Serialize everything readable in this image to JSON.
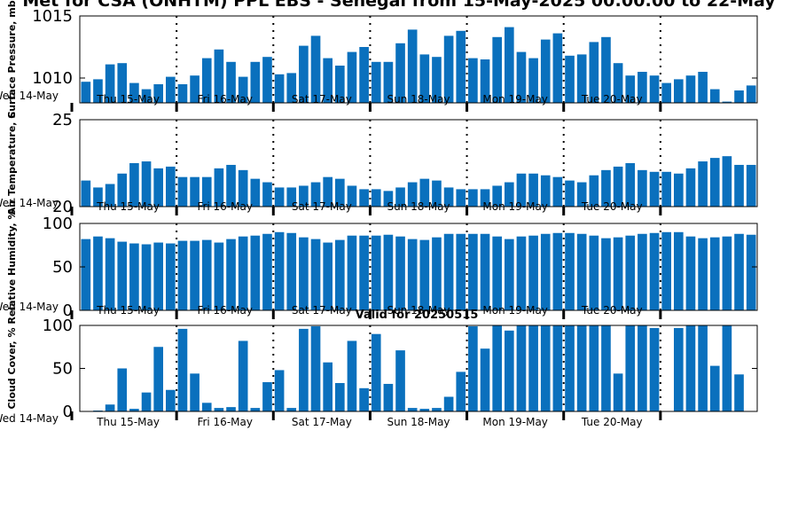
{
  "title": "Met for CSA (ONHTM) PPL EBS  - Senegal from 15-May-2025 00:00:00 to 22-May",
  "subtitle": "Valid for 20250515",
  "colors": {
    "bar": "#0a70bd",
    "axis": "#000000",
    "day_line": "#000000"
  },
  "x_axis": {
    "first_tick_label": "Wed 14-May",
    "day_labels": [
      "Thu 15-May",
      "Fri 16-May",
      "Sat 17-May",
      "Sun 18-May",
      "Mon 19-May",
      "Tue 20-May"
    ],
    "bars_per_day": 8
  },
  "chart_data": [
    {
      "type": "bar",
      "ylabel": "Surface Pressure, mb",
      "ylim": [
        1008,
        1015
      ],
      "yticks": [
        1010,
        1015
      ],
      "values": [
        1009.7,
        1009.9,
        1011.1,
        1011.2,
        1009.6,
        1009.1,
        1009.5,
        1010.1,
        1009.5,
        1010.2,
        1011.6,
        1012.3,
        1011.3,
        1010.1,
        1011.3,
        1011.7,
        1010.3,
        1010.4,
        1012.6,
        1013.4,
        1011.6,
        1011.0,
        1012.1,
        1012.5,
        1011.3,
        1011.3,
        1012.8,
        1013.9,
        1011.9,
        1011.7,
        1013.4,
        1013.8,
        1011.6,
        1011.5,
        1013.3,
        1014.1,
        1012.1,
        1011.6,
        1013.1,
        1013.6,
        1011.8,
        1011.9,
        1012.9,
        1013.3,
        1011.2,
        1010.2,
        1010.5,
        1010.2,
        1009.6,
        1009.9,
        1010.2,
        1010.5,
        1009.1,
        1008.1,
        1009.0,
        1009.4
      ]
    },
    {
      "type": "bar",
      "ylabel": "Air Temperature, C",
      "ylim": [
        20,
        25
      ],
      "yticks": [
        20,
        25
      ],
      "values": [
        21.5,
        21.1,
        21.3,
        21.9,
        22.5,
        22.6,
        22.2,
        22.3,
        21.7,
        21.7,
        21.7,
        22.2,
        22.4,
        22.1,
        21.6,
        21.4,
        21.1,
        21.1,
        21.2,
        21.4,
        21.7,
        21.6,
        21.2,
        21.0,
        21.0,
        20.9,
        21.1,
        21.4,
        21.6,
        21.5,
        21.1,
        21.0,
        21.0,
        21.0,
        21.2,
        21.4,
        21.9,
        21.9,
        21.8,
        21.7,
        21.5,
        21.4,
        21.8,
        22.1,
        22.3,
        22.5,
        22.1,
        22.0,
        22.0,
        21.9,
        22.2,
        22.6,
        22.8,
        22.9,
        22.4,
        22.4
      ]
    },
    {
      "type": "bar",
      "ylabel": "Relative Humidity, %",
      "ylim": [
        0,
        100
      ],
      "yticks": [
        0,
        50,
        100
      ],
      "values": [
        82,
        85,
        83,
        79,
        77,
        76,
        78,
        77,
        80,
        80,
        81,
        78,
        82,
        85,
        86,
        88,
        90,
        89,
        84,
        82,
        78,
        81,
        86,
        86,
        86,
        87,
        85,
        82,
        81,
        84,
        88,
        88,
        88,
        88,
        85,
        82,
        85,
        86,
        88,
        89,
        89,
        88,
        86,
        83,
        84,
        86,
        88,
        89,
        90,
        90,
        85,
        83,
        84,
        85,
        88,
        87
      ]
    },
    {
      "type": "bar",
      "ylabel": "Cloud Cover, %",
      "ylim": [
        0,
        100
      ],
      "yticks": [
        0,
        50,
        100
      ],
      "values": [
        0,
        1,
        8,
        50,
        3,
        22,
        75,
        25,
        96,
        44,
        10,
        4,
        5,
        82,
        4,
        34,
        48,
        4,
        96,
        99,
        57,
        33,
        82,
        27,
        90,
        32,
        71,
        4,
        3,
        4,
        17,
        46,
        99,
        73,
        100,
        94,
        100,
        100,
        100,
        100,
        100,
        100,
        100,
        100,
        44,
        100,
        100,
        97,
        0,
        97,
        100,
        100,
        53,
        100,
        43,
        0
      ]
    }
  ]
}
